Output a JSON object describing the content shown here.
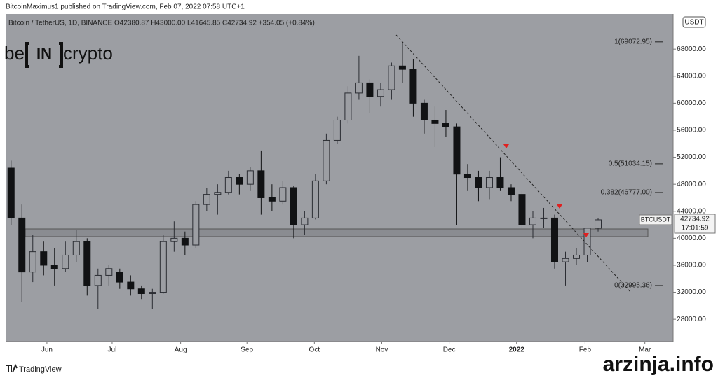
{
  "header": {
    "byline": "BitcoinMaximus1 published on TradingView.com, Feb 07, 2022 07:58 UTC+1",
    "symbol_line": "Bitcoin / TetherUS, 1D, BINANCE  O42380.87  H43000.00  L41645.85  C42734.92  +354.05 (+0.84%)"
  },
  "logo": {
    "left": "be",
    "mark": "IN",
    "right": "crypto"
  },
  "footer": "TradingView",
  "watermark": "arzinja.info",
  "chart_data": {
    "type": "candlestick",
    "categories": [
      null,
      null,
      null,
      null,
      null,
      null,
      null,
      null,
      null,
      null,
      null,
      null,
      null,
      null,
      null,
      null,
      null,
      null,
      null,
      null,
      null,
      null,
      null,
      null,
      null,
      null,
      null,
      null,
      null,
      null,
      null,
      null,
      null,
      null,
      null,
      null,
      null,
      null,
      null,
      null,
      null,
      null,
      null,
      null,
      null,
      null,
      null,
      null,
      null,
      null,
      null,
      null,
      null,
      null,
      null
    ],
    "open": [
      50400,
      43000,
      35000,
      38000,
      36000,
      35500,
      37500,
      39500,
      33000,
      34500,
      35000,
      33500,
      32500,
      31800,
      32000,
      39500,
      40000,
      39000,
      45000,
      46500,
      46800,
      49000,
      48000,
      50000,
      46000,
      45500,
      47500,
      42000,
      43000,
      48500,
      54500,
      57500,
      61500,
      63000,
      61000,
      62000,
      65500,
      65000,
      60000,
      57500,
      57000,
      56500,
      49500,
      49000,
      47500,
      49000,
      47500,
      46500,
      42000,
      43000,
      43000,
      36500,
      37000,
      37500,
      41500
    ],
    "high": [
      51500,
      45000,
      40500,
      39500,
      38500,
      39500,
      41200,
      40000,
      35500,
      36000,
      35500,
      34500,
      33000,
      32500,
      40500,
      42500,
      41000,
      45500,
      47500,
      48000,
      50000,
      49500,
      50500,
      53000,
      48000,
      48500,
      47800,
      44000,
      49500,
      55500,
      58000,
      62500,
      67000,
      63500,
      63000,
      66000,
      69000,
      66500,
      60500,
      59500,
      59000,
      57000,
      51000,
      50000,
      50000,
      52000,
      48000,
      47000,
      44000,
      44500,
      43500,
      38000,
      38500,
      41500,
      43000
    ],
    "low": [
      42000,
      30500,
      33500,
      34500,
      33000,
      35000,
      36500,
      31500,
      29500,
      33000,
      32500,
      31500,
      31000,
      29500,
      31800,
      38000,
      37500,
      38500,
      44000,
      43500,
      46500,
      46500,
      47000,
      43500,
      44000,
      45000,
      40000,
      40500,
      42800,
      48000,
      54000,
      57000,
      60500,
      58500,
      59500,
      60500,
      63000,
      58000,
      55500,
      53500,
      55000,
      42000,
      47000,
      45500,
      45800,
      47000,
      45500,
      41500,
      40000,
      41500,
      35500,
      33000,
      36000,
      36500,
      41000
    ],
    "close": [
      43000,
      35000,
      38000,
      36000,
      35500,
      37500,
      39500,
      33000,
      34500,
      35500,
      33500,
      32500,
      31800,
      32000,
      39500,
      40000,
      39000,
      45000,
      46500,
      46800,
      49000,
      48000,
      50000,
      46000,
      45500,
      47500,
      42000,
      43000,
      48500,
      54500,
      57500,
      61500,
      63000,
      61000,
      62000,
      65500,
      65000,
      60000,
      57500,
      57000,
      56500,
      49500,
      49000,
      47500,
      49000,
      47500,
      46500,
      42000,
      43000,
      43000,
      36500,
      37000,
      37500,
      41500,
      42734.92
    ],
    "up_color": "#2b2d33",
    "down_color": "#111214",
    "xlim": [
      0,
      61.4
    ],
    "xticks": [
      {
        "value": 3.8,
        "label": "Jun"
      },
      {
        "value": 9.8,
        "label": "Jul"
      },
      {
        "value": 16.1,
        "label": "Aug"
      },
      {
        "value": 22.2,
        "label": "Sep"
      },
      {
        "value": 28.4,
        "label": "Oct"
      },
      {
        "value": 34.6,
        "label": "Nov"
      },
      {
        "value": 40.8,
        "label": "Dec"
      },
      {
        "value": 47.0,
        "label": "2022"
      },
      {
        "value": 53.3,
        "label": "Feb"
      },
      {
        "value": 58.8,
        "label": "Mar"
      }
    ],
    "ylim": [
      24700,
      73200
    ],
    "yticks": [
      {
        "value": 28000,
        "label": "28000.00"
      },
      {
        "value": 32000,
        "label": "32000.00"
      },
      {
        "value": 36000,
        "label": "36000.00"
      },
      {
        "value": 40000,
        "label": "40000.00"
      },
      {
        "value": 44000,
        "label": "44000.00"
      },
      {
        "value": 48000,
        "label": "48000.00"
      },
      {
        "value": 52000,
        "label": "52000.00"
      },
      {
        "value": 56000,
        "label": "56000.00"
      },
      {
        "value": 60000,
        "label": "60000.00"
      },
      {
        "value": 64000,
        "label": "64000.00"
      },
      {
        "value": 68000,
        "label": "68000.00"
      }
    ],
    "currency": "USDT",
    "last_price": {
      "symbol": "BTCUSDT",
      "value": 42734.92,
      "countdown": "17:01:59"
    },
    "fib_levels": [
      {
        "value": 69072.95,
        "label": "1(69072.95)"
      },
      {
        "value": 51034.15,
        "label": "0.5(51034.15)"
      },
      {
        "value": 46777.0,
        "label": "0.382(46777.00)"
      },
      {
        "value": 32995.36,
        "label": "0(32995.36)"
      }
    ]
  }
}
